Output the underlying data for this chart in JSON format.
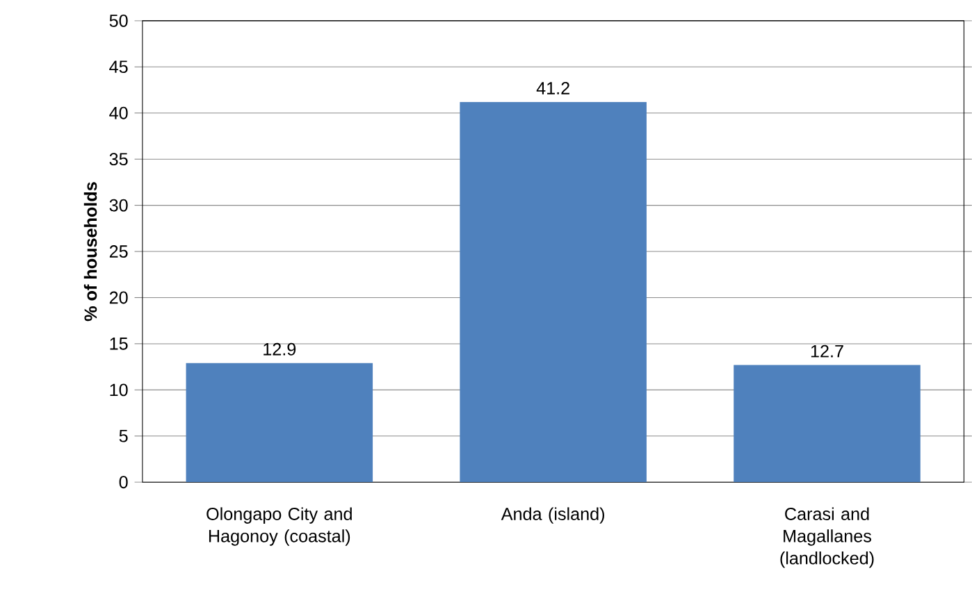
{
  "chart_data": {
    "type": "bar",
    "ylabel": "% of households",
    "categories": [
      "Olongapo City and Hagonoy (coastal)",
      "Anda (island)",
      "Carasi and Magallanes (landlocked)"
    ],
    "values": [
      12.9,
      41.2,
      12.7
    ],
    "color": "#4f81bd",
    "ylim": [
      0,
      50
    ],
    "yticks": [
      0,
      5,
      10,
      15,
      20,
      25,
      30,
      35,
      40,
      45,
      50
    ],
    "grid": "y",
    "data_labels": true
  }
}
